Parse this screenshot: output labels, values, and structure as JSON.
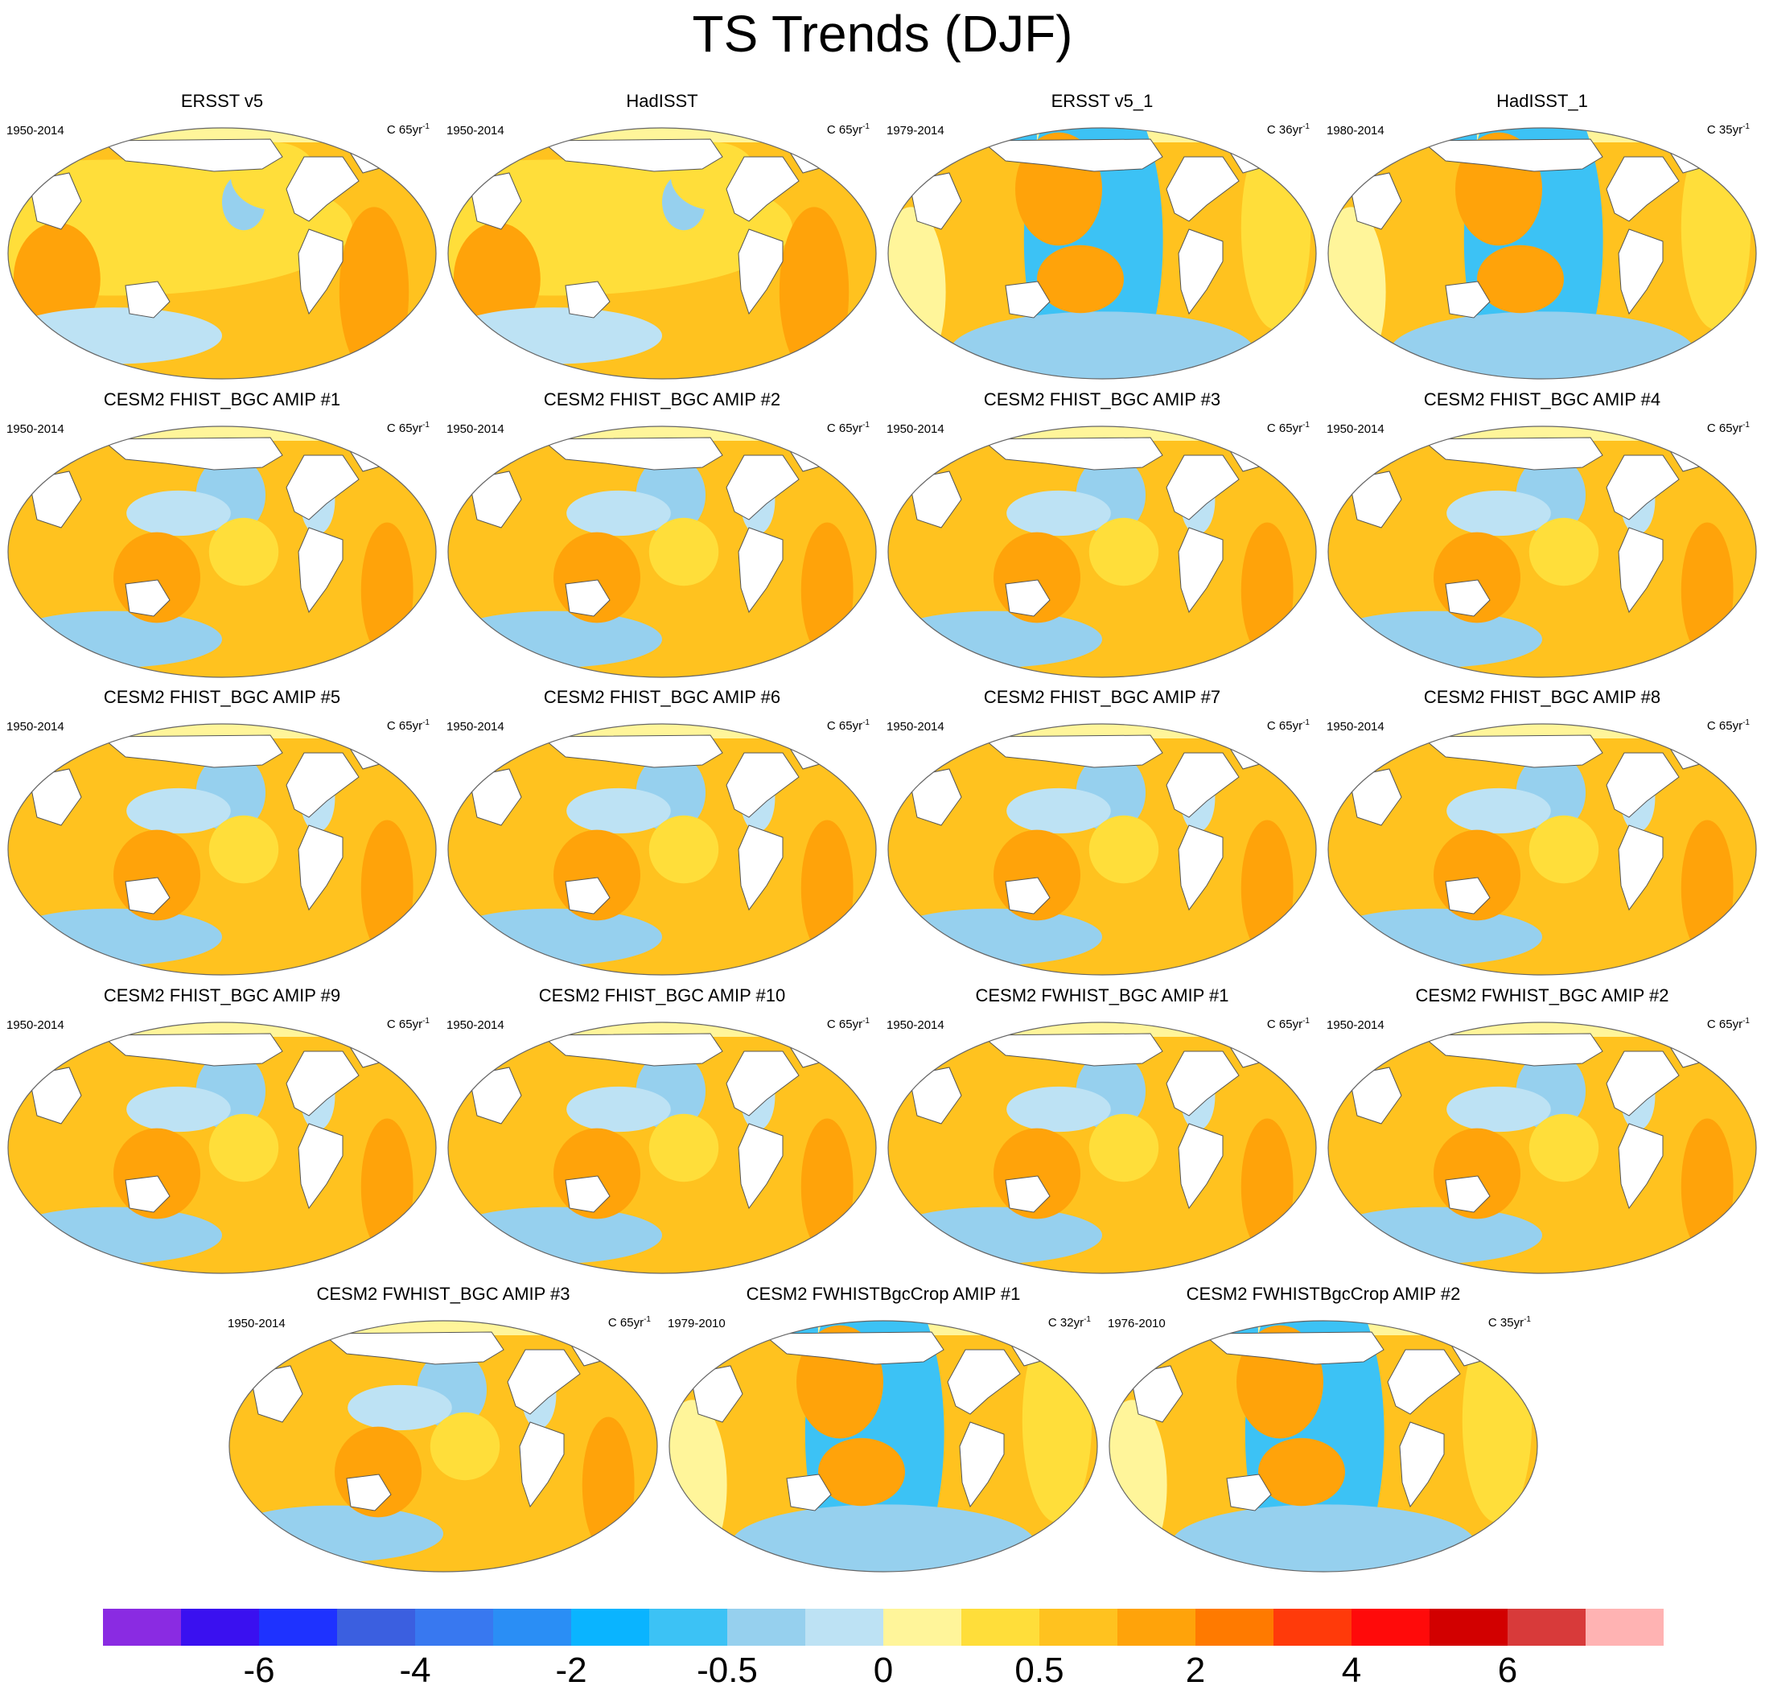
{
  "title": "TS Trends (DJF)",
  "chart_data": {
    "type": "map-panels",
    "variable": "TS",
    "season": "DJF",
    "units": "C",
    "panels": [
      {
        "title": "ERSST v5",
        "period": "1950-2014",
        "unit": "C",
        "span": "65yr",
        "exp": "-1",
        "pattern": "obs_long"
      },
      {
        "title": "HadISST",
        "period": "1950-2014",
        "unit": "C",
        "span": "65yr",
        "exp": "-1",
        "pattern": "obs_long"
      },
      {
        "title": "ERSST v5_1",
        "period": "1979-2014",
        "unit": "C",
        "span": "36yr",
        "exp": "-1",
        "pattern": "obs_short"
      },
      {
        "title": "HadISST_1",
        "period": "1980-2014",
        "unit": "C",
        "span": "35yr",
        "exp": "-1",
        "pattern": "obs_short"
      },
      {
        "title": "CESM2 FHIST_BGC AMIP #1",
        "period": "1950-2014",
        "unit": "C",
        "span": "65yr",
        "exp": "-1",
        "pattern": "model"
      },
      {
        "title": "CESM2 FHIST_BGC AMIP #2",
        "period": "1950-2014",
        "unit": "C",
        "span": "65yr",
        "exp": "-1",
        "pattern": "model"
      },
      {
        "title": "CESM2 FHIST_BGC AMIP #3",
        "period": "1950-2014",
        "unit": "C",
        "span": "65yr",
        "exp": "-1",
        "pattern": "model"
      },
      {
        "title": "CESM2 FHIST_BGC AMIP #4",
        "period": "1950-2014",
        "unit": "C",
        "span": "65yr",
        "exp": "-1",
        "pattern": "model"
      },
      {
        "title": "CESM2 FHIST_BGC AMIP #5",
        "period": "1950-2014",
        "unit": "C",
        "span": "65yr",
        "exp": "-1",
        "pattern": "model"
      },
      {
        "title": "CESM2 FHIST_BGC AMIP #6",
        "period": "1950-2014",
        "unit": "C",
        "span": "65yr",
        "exp": "-1",
        "pattern": "model"
      },
      {
        "title": "CESM2 FHIST_BGC AMIP #7",
        "period": "1950-2014",
        "unit": "C",
        "span": "65yr",
        "exp": "-1",
        "pattern": "model"
      },
      {
        "title": "CESM2 FHIST_BGC AMIP #8",
        "period": "1950-2014",
        "unit": "C",
        "span": "65yr",
        "exp": "-1",
        "pattern": "model"
      },
      {
        "title": "CESM2 FHIST_BGC AMIP #9",
        "period": "1950-2014",
        "unit": "C",
        "span": "65yr",
        "exp": "-1",
        "pattern": "model"
      },
      {
        "title": "CESM2 FHIST_BGC AMIP #10",
        "period": "1950-2014",
        "unit": "C",
        "span": "65yr",
        "exp": "-1",
        "pattern": "model"
      },
      {
        "title": "CESM2 FWHIST_BGC AMIP #1",
        "period": "1950-2014",
        "unit": "C",
        "span": "65yr",
        "exp": "-1",
        "pattern": "model"
      },
      {
        "title": "CESM2 FWHIST_BGC AMIP #2",
        "period": "1950-2014",
        "unit": "C",
        "span": "65yr",
        "exp": "-1",
        "pattern": "model"
      },
      {
        "title": "CESM2 FWHIST_BGC AMIP #3",
        "period": "1950-2014",
        "unit": "C",
        "span": "65yr",
        "exp": "-1",
        "pattern": "model"
      },
      {
        "title": "CESM2 FWHISTBgcCrop AMIP #1",
        "period": "1979-2010",
        "unit": "C",
        "span": "32yr",
        "exp": "-1",
        "pattern": "obs_short"
      },
      {
        "title": "CESM2 FWHISTBgcCrop AMIP #2",
        "period": "1976-2010",
        "unit": "C",
        "span": "35yr",
        "exp": "-1",
        "pattern": "obs_short"
      }
    ],
    "colorbar": {
      "colors": [
        "#8a2be2",
        "#3a10f0",
        "#1e32ff",
        "#3b5fe0",
        "#3878f0",
        "#2a8ef5",
        "#0ab4ff",
        "#3cc2f5",
        "#96d0ee",
        "#bde2f4",
        "#fff59a",
        "#ffde3a",
        "#ffc21f",
        "#ffa30a",
        "#ff7a00",
        "#ff3a0a",
        "#ff0a0a",
        "#d20000",
        "#d83a3a",
        "#ffb3b3"
      ],
      "labels": [
        "-6",
        "-4",
        "-2",
        "-0.5",
        "0",
        "0.5",
        "2",
        "4",
        "6"
      ]
    }
  }
}
